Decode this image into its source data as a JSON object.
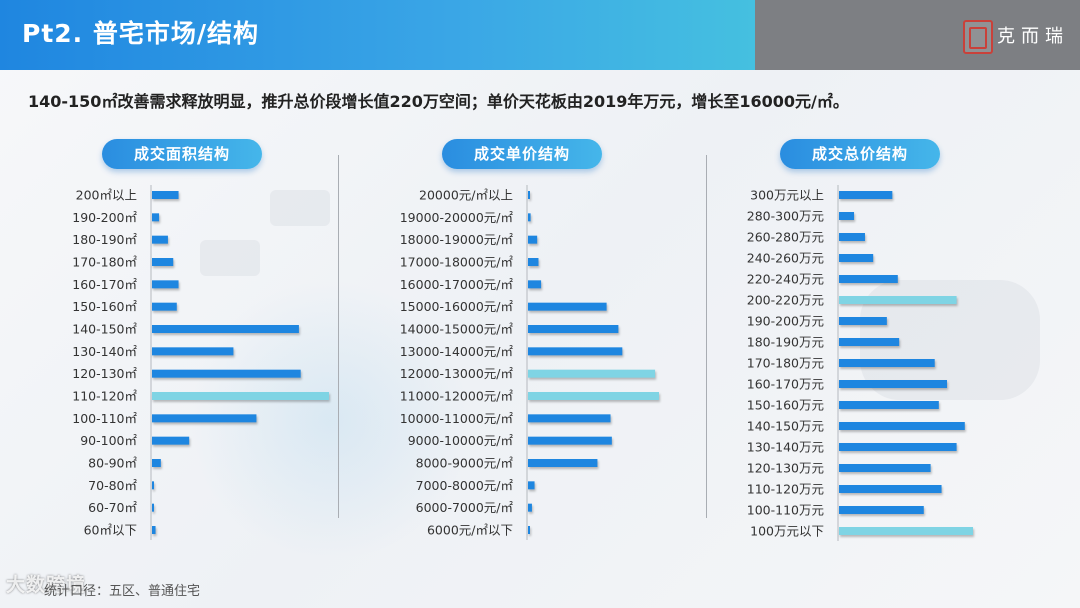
{
  "header": {
    "title": "Pt2. 普宅市场/结构",
    "brand": "克而瑞"
  },
  "subtitle": "140-150㎡改善需求释放明显，推升总价段增长值220万空间；单价天花板由2019年万元，增长至16000元/㎡。",
  "footer": "统计口径：五区、普通住宅",
  "watermark": "大数跨境",
  "colors": {
    "bar": "#1e86e0",
    "highlight": "#7fd4e4",
    "header": "#2a92e3",
    "header_grey": "#7d7f83"
  },
  "chart_data": [
    {
      "type": "bar",
      "orientation": "horizontal",
      "title": "成交面积结构",
      "categories": [
        "200㎡以上",
        "190-200㎡",
        "180-190㎡",
        "170-180㎡",
        "160-170㎡",
        "150-160㎡",
        "140-150㎡",
        "130-140㎡",
        "120-130㎡",
        "110-120㎡",
        "100-110㎡",
        "90-100㎡",
        "80-90㎡",
        "70-80㎡",
        "60-70㎡",
        "60㎡以下"
      ],
      "values": [
        15,
        4,
        9,
        12,
        15,
        14,
        83,
        46,
        84,
        100,
        59,
        21,
        5,
        1,
        1,
        2
      ],
      "highlight": [
        "110-120㎡"
      ]
    },
    {
      "type": "bar",
      "orientation": "horizontal",
      "title": "成交单价结构",
      "categories": [
        "20000元/㎡以上",
        "19000-20000元/㎡",
        "18000-19000元/㎡",
        "17000-18000元/㎡",
        "16000-17000元/㎡",
        "15000-16000元/㎡",
        "14000-15000元/㎡",
        "13000-14000元/㎡",
        "12000-13000元/㎡",
        "11000-12000元/㎡",
        "10000-11000元/㎡",
        "9000-10000元/㎡",
        "8000-9000元/㎡",
        "7000-8000元/㎡",
        "6000-7000元/㎡",
        "6000元/㎡以下"
      ],
      "values": [
        0.5,
        2,
        7,
        8,
        10,
        60,
        69,
        72,
        97,
        100,
        63,
        64,
        53,
        5,
        3,
        0.5
      ],
      "highlight": [
        "12000-13000元/㎡",
        "11000-12000元/㎡"
      ]
    },
    {
      "type": "bar",
      "orientation": "horizontal",
      "title": "成交总价结构",
      "categories": [
        "300万元以上",
        "280-300万元",
        "260-280万元",
        "240-260万元",
        "220-240万元",
        "200-220万元",
        "190-200万元",
        "180-190万元",
        "170-180万元",
        "160-170万元",
        "150-160万元",
        "140-150万元",
        "130-140万元",
        "120-130万元",
        "110-120万元",
        "100-110万元",
        "100万元以下"
      ],
      "values": [
        39,
        11,
        19,
        25,
        43,
        86,
        35,
        44,
        70,
        79,
        73,
        92,
        86,
        67,
        75,
        62,
        98
      ],
      "highlight": [
        "200-220万元",
        "100万元以下"
      ]
    }
  ]
}
